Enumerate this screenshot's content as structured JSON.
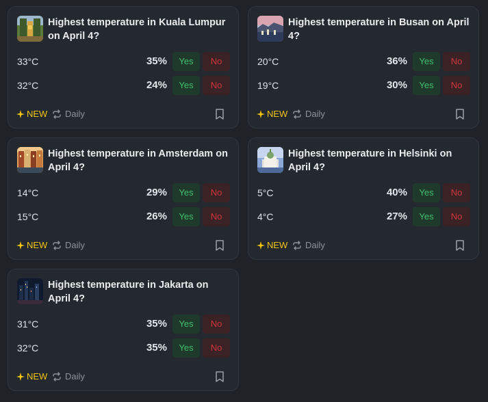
{
  "markets": [
    {
      "title": "Highest temperature in Kuala Lumpur on April 4?",
      "thumbnail_icon": "kuala-lumpur-photo",
      "outcomes": [
        {
          "label": "33°C",
          "pct": "35%",
          "yes": "Yes",
          "no": "No"
        },
        {
          "label": "32°C",
          "pct": "24%",
          "yes": "Yes",
          "no": "No"
        }
      ],
      "badge": "NEW",
      "recurrence": "Daily"
    },
    {
      "title": "Highest temperature in Busan on April 4?",
      "thumbnail_icon": "busan-photo",
      "outcomes": [
        {
          "label": "20°C",
          "pct": "36%",
          "yes": "Yes",
          "no": "No"
        },
        {
          "label": "19°C",
          "pct": "30%",
          "yes": "Yes",
          "no": "No"
        }
      ],
      "badge": "NEW",
      "recurrence": "Daily"
    },
    {
      "title": "Highest temperature in Amsterdam on April 4?",
      "thumbnail_icon": "amsterdam-photo",
      "outcomes": [
        {
          "label": "14°C",
          "pct": "29%",
          "yes": "Yes",
          "no": "No"
        },
        {
          "label": "15°C",
          "pct": "26%",
          "yes": "Yes",
          "no": "No"
        }
      ],
      "badge": "NEW",
      "recurrence": "Daily"
    },
    {
      "title": "Highest temperature in Helsinki on April 4?",
      "thumbnail_icon": "helsinki-photo",
      "outcomes": [
        {
          "label": "5°C",
          "pct": "40%",
          "yes": "Yes",
          "no": "No"
        },
        {
          "label": "4°C",
          "pct": "27%",
          "yes": "Yes",
          "no": "No"
        }
      ],
      "badge": "NEW",
      "recurrence": "Daily"
    },
    {
      "title": "Highest temperature in Jakarta on April 4?",
      "thumbnail_icon": "jakarta-photo",
      "outcomes": [
        {
          "label": "31°C",
          "pct": "35%",
          "yes": "Yes",
          "no": "No"
        },
        {
          "label": "32°C",
          "pct": "35%",
          "yes": "Yes",
          "no": "No"
        }
      ],
      "badge": "NEW",
      "recurrence": "Daily"
    }
  ],
  "colors": {
    "background": "#1f2328",
    "card": "#24292f",
    "yes_text": "#3fc06f",
    "yes_bg": "#1f3a2b",
    "no_text": "#d2363d",
    "no_bg": "#3a2225",
    "new_badge": "#f2c511",
    "muted": "#8b939b"
  }
}
